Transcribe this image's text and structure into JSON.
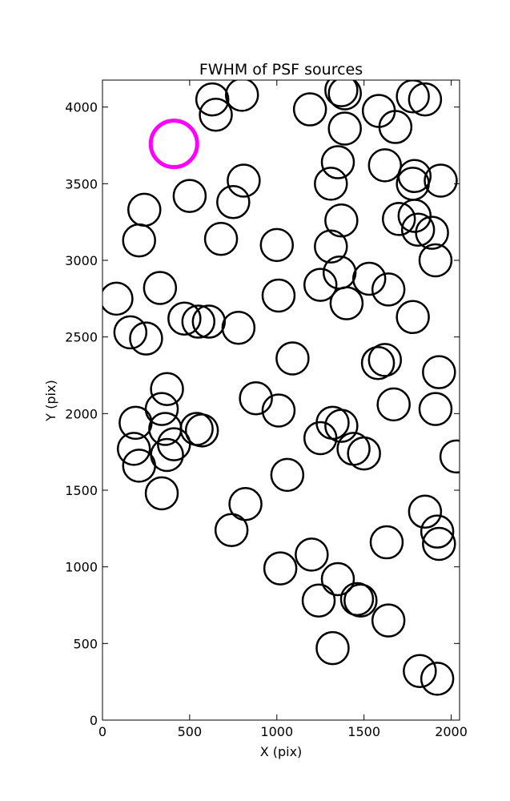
{
  "chart_data": {
    "type": "scatter",
    "title": "FWHM of PSF sources",
    "xlabel": "X (pix)",
    "ylabel": "Y (pix)",
    "xlim": [
      0,
      2048
    ],
    "ylim": [
      0,
      4176
    ],
    "grid": false,
    "xticks": [
      0,
      500,
      1000,
      1500,
      2000
    ],
    "yticks": [
      0,
      500,
      1000,
      1500,
      2000,
      2500,
      3000,
      3500,
      4000
    ],
    "marker": "circle",
    "colors": {
      "sources": "#000000",
      "reference": "#ff00ff"
    },
    "series": [
      {
        "role": "sources",
        "x": [
          630,
          800,
          650,
          1190,
          1370,
          1390,
          1585,
          1680,
          1780,
          1850,
          1390,
          1350,
          1310,
          1620,
          1790,
          1780,
          1940,
          240,
          500,
          810,
          750,
          1370,
          1700,
          1790,
          1810,
          1890,
          210,
          680,
          1000,
          1310,
          1910,
          330,
          80,
          1010,
          1250,
          1360,
          1400,
          1530,
          1640,
          470,
          160,
          250,
          550,
          610,
          780,
          1780,
          1090,
          1580,
          1620,
          1930,
          370,
          340,
          880,
          190,
          1010,
          1320,
          1370,
          1670,
          1910,
          360,
          570,
          540,
          410,
          180,
          370,
          1250,
          1440,
          1500,
          210,
          1060,
          2030,
          340,
          820,
          1850,
          740,
          1630,
          1920,
          1930,
          1200,
          1020,
          1350,
          1240,
          1460,
          1480,
          1640,
          1320,
          1820,
          1920
        ],
        "y": [
          4050,
          4080,
          3950,
          3985,
          4110,
          4090,
          3975,
          3870,
          4070,
          4050,
          3860,
          3640,
          3500,
          3620,
          3550,
          3500,
          3520,
          3330,
          3420,
          3520,
          3380,
          3260,
          3270,
          3290,
          3200,
          3180,
          3130,
          3140,
          3100,
          3090,
          3000,
          2820,
          2750,
          2770,
          2840,
          2920,
          2720,
          2880,
          2810,
          2620,
          2530,
          2490,
          2600,
          2600,
          2560,
          2630,
          2360,
          2330,
          2350,
          2270,
          2160,
          2030,
          2100,
          1940,
          2020,
          1940,
          1920,
          2060,
          2030,
          1900,
          1890,
          1900,
          1800,
          1770,
          1730,
          1840,
          1770,
          1740,
          1660,
          1600,
          1720,
          1480,
          1410,
          1360,
          1240,
          1160,
          1230,
          1150,
          1080,
          990,
          920,
          780,
          790,
          780,
          650,
          470,
          320,
          270
        ]
      },
      {
        "role": "reference",
        "x": [
          410
        ],
        "y": [
          3760
        ]
      }
    ]
  }
}
